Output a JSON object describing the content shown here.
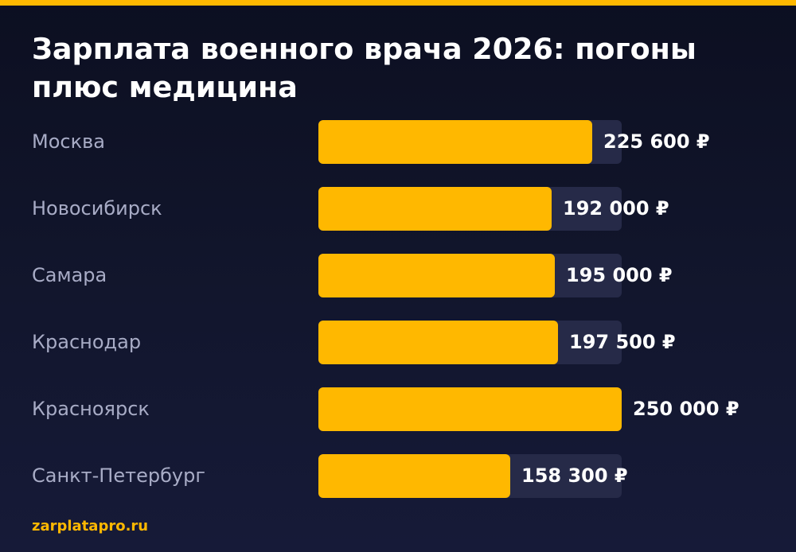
{
  "colors": {
    "accent": "#ffb800",
    "background": "#11152b",
    "track": "#262a48",
    "label": "#a8acc6",
    "value": "#ffffff"
  },
  "title": "Зарплата военного врача 2026: погоны плюс медицина",
  "source": "zarplatapro.ru",
  "chart_data": {
    "type": "bar",
    "orientation": "horizontal",
    "title": "Зарплата военного врача 2026: погоны плюс медицина",
    "categories": [
      "Москва",
      "Новосибирск",
      "Самара",
      "Краснодар",
      "Красноярск",
      "Санкт-Петербург"
    ],
    "values": [
      225600,
      192000,
      195000,
      197500,
      250000,
      158300
    ],
    "value_labels": [
      "225 600 ₽",
      "192 000 ₽",
      "195 000 ₽",
      "197 500 ₽",
      "250 000 ₽",
      "158 300 ₽"
    ],
    "unit": "₽",
    "xlim": [
      0,
      250000
    ],
    "grid": false,
    "legend": "none"
  }
}
